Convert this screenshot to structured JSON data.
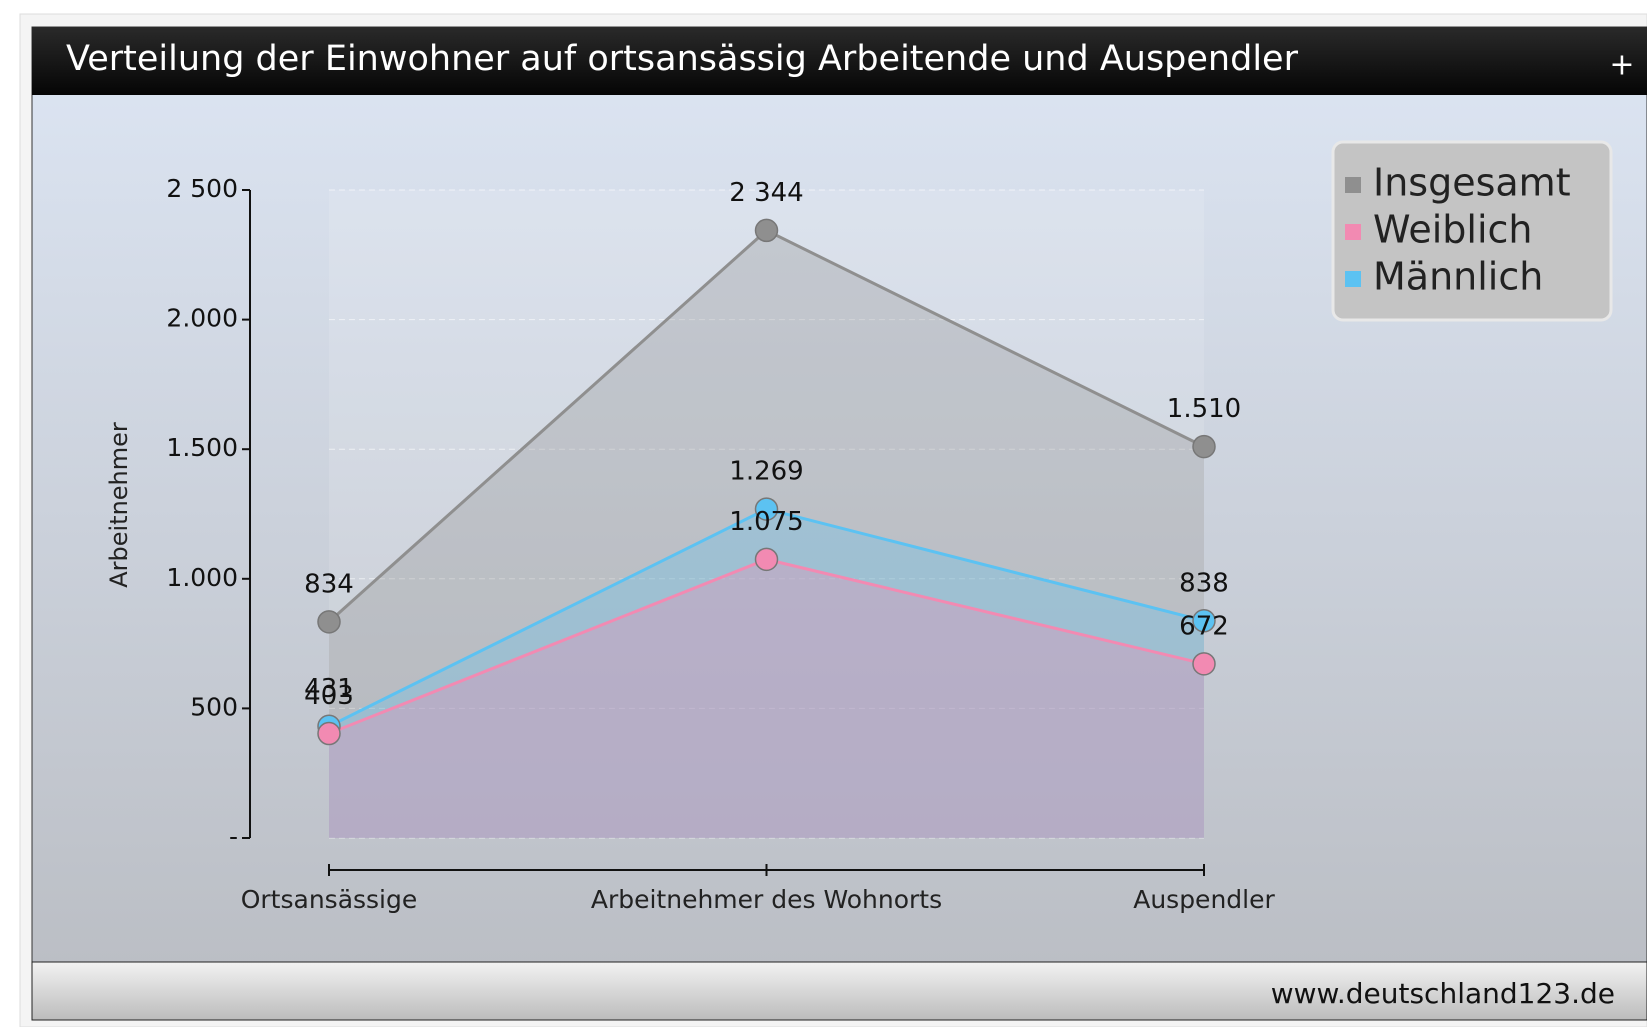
{
  "header": {
    "button": "+"
  },
  "chart_data": {
    "type": "line",
    "title": "Verteilung der Einwohner auf ortsansässig Arbeitende und Auspendler",
    "y_label": "Arbeitnehmer",
    "categories": [
      "Ortsansässige",
      "Arbeitnehmer des Wohnorts",
      "Auspendler"
    ],
    "series": [
      {
        "name": "Insgesamt",
        "color": "#8f8f8f",
        "values": [
          834,
          2344,
          1510
        ],
        "value_labels": [
          "834",
          "2 344",
          "1.510"
        ]
      },
      {
        "name": "Weiblich",
        "color": "#f28ab2",
        "values": [
          403,
          1075,
          672
        ],
        "value_labels": [
          "403",
          "1.075",
          "672"
        ]
      },
      {
        "name": "Männlich",
        "color": "#5cc2f2",
        "values": [
          431,
          1269,
          838
        ],
        "value_labels": [
          "431",
          "1.269",
          "838"
        ]
      }
    ],
    "ylim": [
      0,
      2500
    ],
    "yticks": [
      {
        "value": 0,
        "label": "-"
      },
      500,
      {
        "value": 1000,
        "label": "1.000"
      },
      {
        "value": 1500,
        "label": "1.500"
      },
      {
        "value": 2000,
        "label": "2.000"
      },
      {
        "value": 2500,
        "label": "2 500"
      }
    ],
    "grid": true,
    "legend": "top-right"
  },
  "footer": {
    "source": "www.deutschland123.de"
  }
}
